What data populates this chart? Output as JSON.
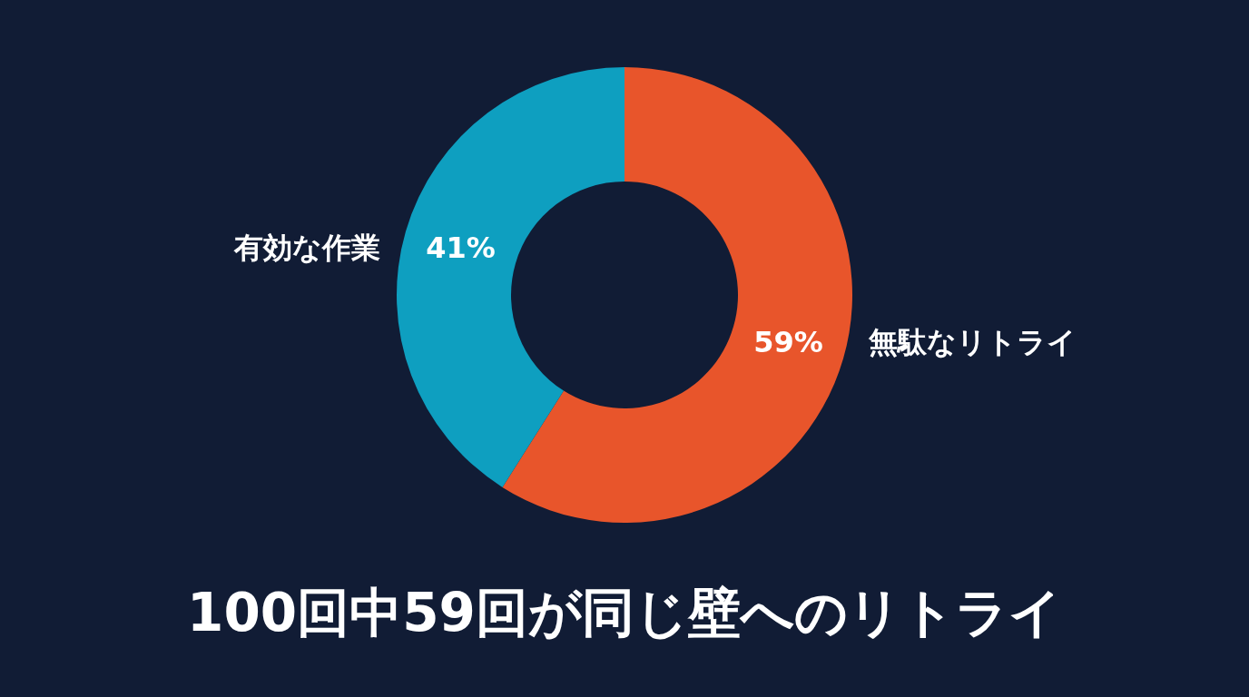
{
  "chart_data": {
    "type": "donut",
    "title": "100回中59回が同じ壁へのリトライ",
    "categories": [
      "無駄なリトライ",
      "有効な作業"
    ],
    "values": [
      59,
      41
    ],
    "colors": [
      "#e8552b",
      "#0e9fc0"
    ],
    "value_labels": [
      "59%",
      "41%"
    ],
    "legend": false
  }
}
